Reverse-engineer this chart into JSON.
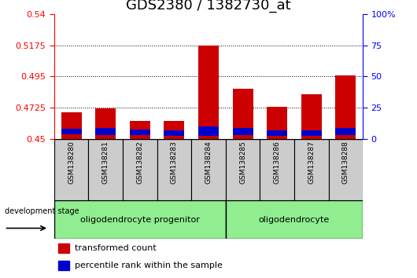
{
  "title": "GDS2380 / 1382730_at",
  "samples": [
    "GSM138280",
    "GSM138281",
    "GSM138282",
    "GSM138283",
    "GSM138284",
    "GSM138285",
    "GSM138286",
    "GSM138287",
    "GSM138288"
  ],
  "base": 0.45,
  "red_tops": [
    0.469,
    0.472,
    0.463,
    0.463,
    0.517,
    0.486,
    0.473,
    0.482,
    0.496
  ],
  "blue_tops": [
    0.4575,
    0.458,
    0.457,
    0.456,
    0.459,
    0.458,
    0.456,
    0.456,
    0.458
  ],
  "blue_bottoms": [
    0.4535,
    0.453,
    0.453,
    0.452,
    0.452,
    0.453,
    0.452,
    0.452,
    0.453
  ],
  "ylim_left": [
    0.45,
    0.54
  ],
  "yticks_left": [
    0.45,
    0.4725,
    0.495,
    0.5175,
    0.54
  ],
  "yticks_right": [
    0,
    25,
    50,
    75,
    100
  ],
  "yright_labels": [
    "0",
    "25",
    "50",
    "75",
    "100%"
  ],
  "group1_label": "oligodendrocyte progenitor",
  "group2_label": "oligodendrocyte",
  "group1_count": 5,
  "group2_count": 4,
  "dev_stage_label": "development stage",
  "bar_width": 0.6,
  "red_color": "#cc0000",
  "blue_color": "#0000cc",
  "gray_color": "#cccccc",
  "green_color": "#90ee90",
  "plot_bg": "#ffffff",
  "title_fontsize": 13,
  "tick_fontsize": 8,
  "label_fontsize": 8
}
